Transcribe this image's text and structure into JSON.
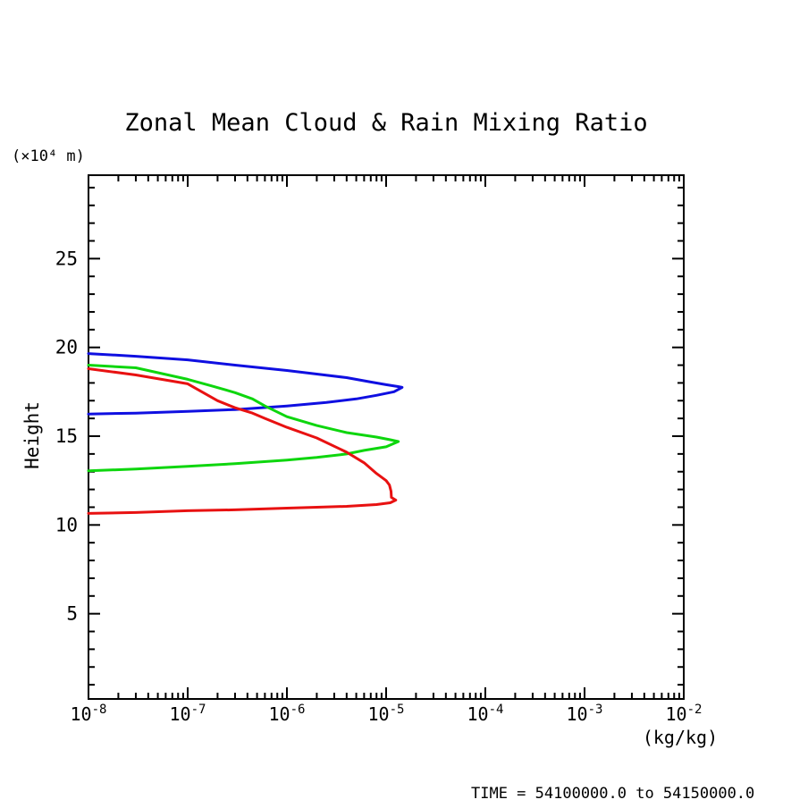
{
  "title": "Zonal Mean Cloud & Rain Mixing Ratio",
  "y_axis": {
    "unit_label": "(×10⁴ m)",
    "axis_label": "Height",
    "major_ticks": [
      25,
      20,
      15,
      10,
      5
    ],
    "minor_step": 1,
    "min": 0.2,
    "max": 29.7
  },
  "x_axis": {
    "unit_label": "(kg/kg)",
    "scale": "log",
    "tick_exponents": [
      -8,
      -7,
      -6,
      -5,
      -4,
      -3,
      -2
    ],
    "tick_base": "10"
  },
  "footer": {
    "time_label": "TIME = 54100000.0 to 54150000.0"
  },
  "chart_data": {
    "type": "line",
    "title": "Zonal Mean Cloud & Rain Mixing Ratio",
    "xlabel": "(kg/kg)",
    "ylabel": "Height (×10⁴ m)",
    "x_scale": "log",
    "xlim": [
      1e-08,
      0.01
    ],
    "ylim": [
      0.2,
      29.7
    ],
    "grid": false,
    "legend": "none",
    "series": [
      {
        "name": "blue-profile",
        "color": "#0f0fe1",
        "points": [
          [
            1e-08,
            19.65
          ],
          [
            3e-08,
            19.5
          ],
          [
            1e-07,
            19.3
          ],
          [
            3e-07,
            19.0
          ],
          [
            1e-06,
            18.7
          ],
          [
            2e-06,
            18.5
          ],
          [
            4e-06,
            18.3
          ],
          [
            7e-06,
            18.05
          ],
          [
            1e-05,
            17.9
          ],
          [
            1.3e-05,
            17.8
          ],
          [
            1.45e-05,
            17.75
          ],
          [
            1.2e-05,
            17.5
          ],
          [
            8e-06,
            17.3
          ],
          [
            5e-06,
            17.1
          ],
          [
            2.5e-06,
            16.9
          ],
          [
            1e-06,
            16.7
          ],
          [
            3e-07,
            16.5
          ],
          [
            1e-07,
            16.4
          ],
          [
            3e-08,
            16.3
          ],
          [
            1e-08,
            16.25
          ]
        ]
      },
      {
        "name": "green-profile",
        "color": "#0ed60e",
        "points": [
          [
            1e-08,
            19.0
          ],
          [
            3e-08,
            18.85
          ],
          [
            1e-07,
            18.2
          ],
          [
            1.7e-07,
            17.85
          ],
          [
            3e-07,
            17.45
          ],
          [
            4.5e-07,
            17.1
          ],
          [
            6e-07,
            16.7
          ],
          [
            1e-06,
            16.1
          ],
          [
            2e-06,
            15.6
          ],
          [
            4e-06,
            15.2
          ],
          [
            8e-06,
            14.95
          ],
          [
            1.1e-05,
            14.8
          ],
          [
            1.33e-05,
            14.7
          ],
          [
            1e-05,
            14.4
          ],
          [
            6e-06,
            14.2
          ],
          [
            4e-06,
            14.0
          ],
          [
            2e-06,
            13.8
          ],
          [
            1e-06,
            13.65
          ],
          [
            3e-07,
            13.45
          ],
          [
            1e-07,
            13.3
          ],
          [
            3e-08,
            13.15
          ],
          [
            1e-08,
            13.05
          ]
        ]
      },
      {
        "name": "red-profile",
        "color": "#e81111",
        "points": [
          [
            1e-08,
            18.8
          ],
          [
            3e-08,
            18.45
          ],
          [
            1e-07,
            17.95
          ],
          [
            2e-07,
            17.0
          ],
          [
            3e-07,
            16.6
          ],
          [
            4.5e-07,
            16.3
          ],
          [
            6e-07,
            16.0
          ],
          [
            1e-06,
            15.5
          ],
          [
            2e-06,
            14.9
          ],
          [
            4e-06,
            14.1
          ],
          [
            6e-06,
            13.5
          ],
          [
            8e-06,
            12.9
          ],
          [
            1e-05,
            12.5
          ],
          [
            1.08e-05,
            12.25
          ],
          [
            1.12e-05,
            11.9
          ],
          [
            1.13e-05,
            11.55
          ],
          [
            1.25e-05,
            11.4
          ],
          [
            1.1e-05,
            11.25
          ],
          [
            8e-06,
            11.15
          ],
          [
            4e-06,
            11.05
          ],
          [
            2e-06,
            11.0
          ],
          [
            1e-06,
            10.95
          ],
          [
            3e-07,
            10.85
          ],
          [
            1e-07,
            10.8
          ],
          [
            3e-08,
            10.7
          ],
          [
            1e-08,
            10.65
          ]
        ]
      }
    ]
  }
}
